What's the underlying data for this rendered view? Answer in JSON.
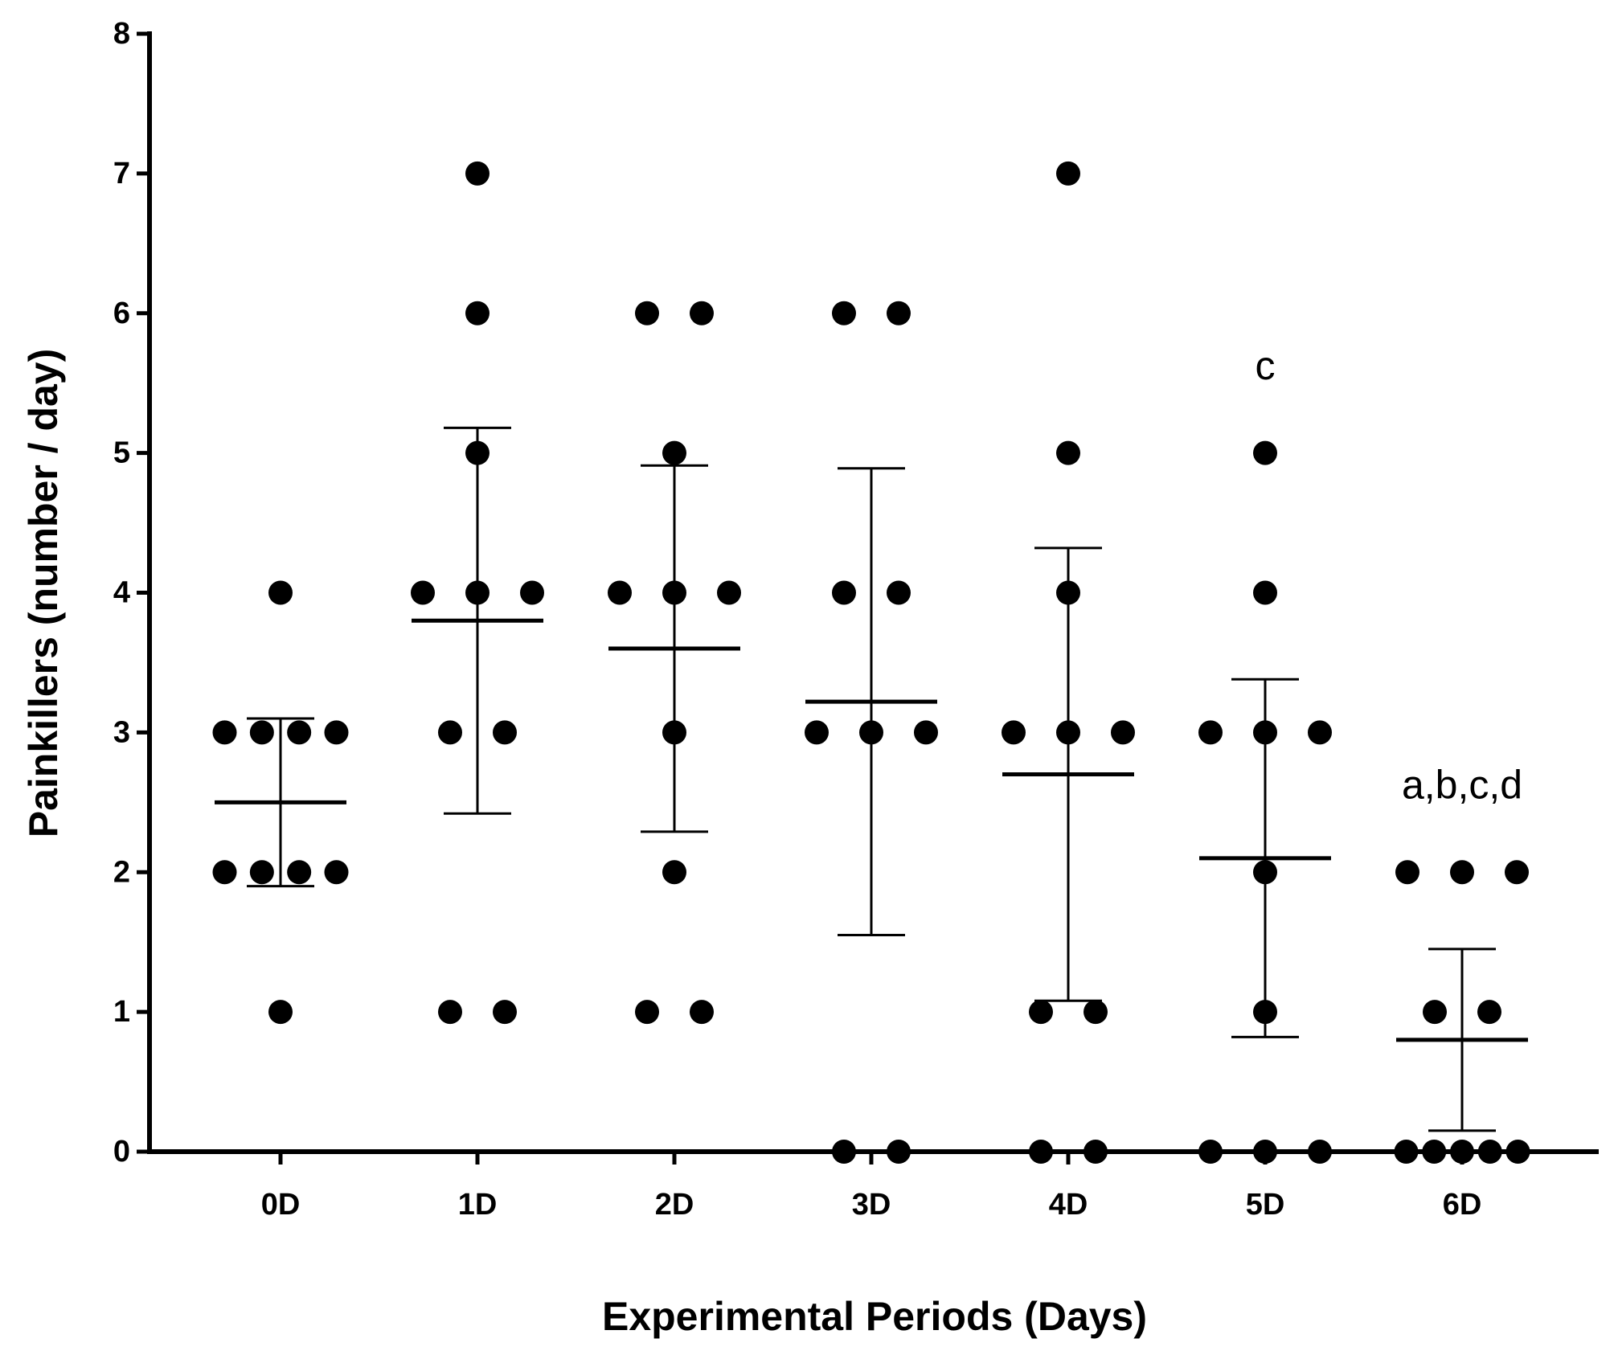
{
  "chart_data": {
    "type": "dot",
    "x_label": "Experimental Periods (Days)",
    "y_label": "Painkillers (number / day)",
    "categories": [
      "0D",
      "1D",
      "2D",
      "3D",
      "4D",
      "5D",
      "6D"
    ],
    "points": [
      [
        4,
        3,
        3,
        3,
        3,
        2,
        2,
        2,
        2,
        1
      ],
      [
        7,
        6,
        5,
        4,
        4,
        4,
        3,
        3,
        1,
        1
      ],
      [
        6,
        6,
        5,
        4,
        4,
        4,
        3,
        2,
        1,
        1
      ],
      [
        6,
        6,
        4,
        4,
        3,
        3,
        3,
        0,
        0
      ],
      [
        7,
        5,
        4,
        3,
        3,
        3,
        1,
        1,
        0,
        0
      ],
      [
        5,
        4,
        3,
        3,
        3,
        2,
        1,
        0,
        0,
        0
      ],
      [
        2,
        2,
        2,
        1,
        1,
        0,
        0,
        0,
        0,
        0
      ]
    ],
    "means": [
      2.5,
      3.8,
      3.6,
      3.22,
      2.7,
      2.1,
      0.8
    ],
    "sd": [
      0.6,
      1.38,
      1.31,
      1.67,
      1.62,
      1.28,
      0.65
    ],
    "annotations": [
      {
        "category": 5,
        "text": "c"
      },
      {
        "category": 6,
        "text": "a,b,c,d"
      }
    ],
    "color": "#000000",
    "ylim": [
      0,
      8
    ],
    "yticks": [
      0,
      1,
      2,
      3,
      4,
      5,
      6,
      7,
      8
    ]
  }
}
